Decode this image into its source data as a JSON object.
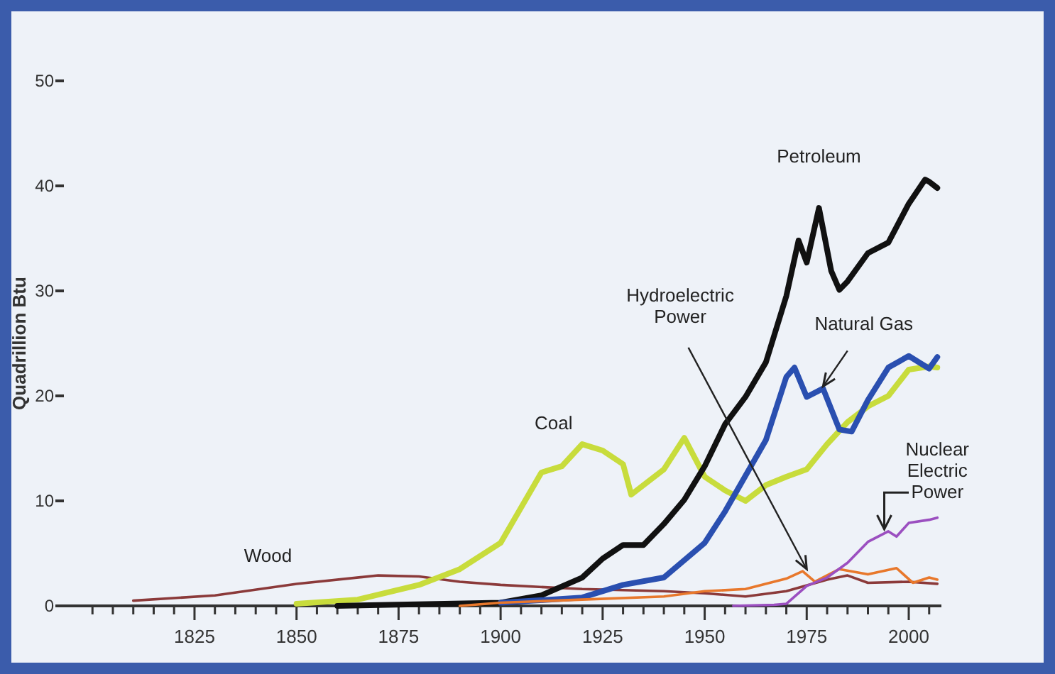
{
  "chart_data": {
    "type": "line",
    "ylabel": "Quadrillion Btu",
    "xlim": [
      1793,
      2008
    ],
    "ylim": [
      0,
      50
    ],
    "yticks": [
      0,
      10,
      20,
      30,
      40,
      50
    ],
    "xticks": [
      {
        "value": 1800,
        "label": null
      },
      {
        "value": 1805,
        "label": null
      },
      {
        "value": 1810,
        "label": null
      },
      {
        "value": 1815,
        "label": null
      },
      {
        "value": 1820,
        "label": null
      },
      1825,
      {
        "value": 1830,
        "label": null
      },
      {
        "value": 1835,
        "label": null
      },
      {
        "value": 1840,
        "label": null
      },
      {
        "value": 1845,
        "label": null
      },
      1850,
      {
        "value": 1855,
        "label": null
      },
      {
        "value": 1860,
        "label": null
      },
      {
        "value": 1865,
        "label": null
      },
      {
        "value": 1870,
        "label": null
      },
      1875,
      {
        "value": 1880,
        "label": null
      },
      {
        "value": 1885,
        "label": null
      },
      {
        "value": 1890,
        "label": null
      },
      {
        "value": 1895,
        "label": null
      },
      1900,
      {
        "value": 1905,
        "label": null
      },
      {
        "value": 1910,
        "label": null
      },
      {
        "value": 1915,
        "label": null
      },
      {
        "value": 1920,
        "label": null
      },
      1925,
      {
        "value": 1930,
        "label": null
      },
      {
        "value": 1935,
        "label": null
      },
      {
        "value": 1940,
        "label": null
      },
      {
        "value": 1945,
        "label": null
      },
      1950,
      {
        "value": 1955,
        "label": null
      },
      {
        "value": 1960,
        "label": null
      },
      {
        "value": 1965,
        "label": null
      },
      {
        "value": 1970,
        "label": null
      },
      1975,
      {
        "value": 1980,
        "label": null
      },
      {
        "value": 1985,
        "label": null
      },
      {
        "value": 1990,
        "label": null
      },
      {
        "value": 1995,
        "label": null
      },
      2000,
      {
        "value": 2005,
        "label": null
      }
    ],
    "grid": false,
    "marker": "none",
    "line_style": "solid",
    "series": [
      {
        "name": "Wood",
        "color": "#8b3a3a",
        "x": [
          1810,
          1830,
          1850,
          1870,
          1880,
          1890,
          1900,
          1920,
          1940,
          1950,
          1960,
          1970,
          1980,
          1985,
          1990,
          2000,
          2007
        ],
        "values": [
          0.5,
          1.0,
          2.1,
          2.9,
          2.8,
          2.3,
          2.0,
          1.6,
          1.4,
          1.2,
          0.9,
          1.4,
          2.5,
          2.9,
          2.2,
          2.3,
          2.1
        ]
      },
      {
        "name": "Coal",
        "color": "#c8dc3c",
        "x": [
          1850,
          1865,
          1880,
          1890,
          1900,
          1910,
          1915,
          1920,
          1925,
          1930,
          1932,
          1940,
          1945,
          1950,
          1955,
          1960,
          1965,
          1970,
          1975,
          1980,
          1985,
          1990,
          1995,
          2000,
          2005,
          2007
        ],
        "values": [
          0.2,
          0.6,
          2,
          3.5,
          6,
          12.7,
          13.3,
          15.4,
          14.8,
          13.5,
          10.6,
          13,
          16,
          12.3,
          11,
          10,
          11.5,
          12.3,
          13,
          15.4,
          17.5,
          19,
          20,
          22.5,
          22.8,
          22.7
        ]
      },
      {
        "name": "Petroleum",
        "color": "#111111",
        "x": [
          1860,
          1900,
          1910,
          1920,
          1925,
          1930,
          1935,
          1940,
          1945,
          1950,
          1955,
          1960,
          1965,
          1970,
          1973,
          1975,
          1978,
          1981,
          1983,
          1985,
          1990,
          1995,
          2000,
          2004,
          2005,
          2007
        ],
        "values": [
          0,
          0.3,
          1,
          2.7,
          4.5,
          5.8,
          5.8,
          7.8,
          10.1,
          13.3,
          17.3,
          19.9,
          23.2,
          29.5,
          34.8,
          32.7,
          37.9,
          31.9,
          30.1,
          30.9,
          33.6,
          34.6,
          38.3,
          40.6,
          40.4,
          39.8
        ]
      },
      {
        "name": "Natural Gas",
        "color": "#2a4fb0",
        "x": [
          1900,
          1920,
          1930,
          1940,
          1950,
          1955,
          1960,
          1965,
          1970,
          1972,
          1975,
          1979,
          1983,
          1986,
          1990,
          1995,
          2000,
          2005,
          2007
        ],
        "values": [
          0.3,
          0.8,
          2,
          2.7,
          6,
          9,
          12.4,
          15.8,
          21.8,
          22.7,
          19.9,
          20.7,
          16.8,
          16.6,
          19.6,
          22.7,
          23.8,
          22.6,
          23.7
        ]
      },
      {
        "name": "Hydroelectric Power",
        "color": "#e8782c",
        "x": [
          1890,
          1900,
          1920,
          1940,
          1950,
          1960,
          1970,
          1974,
          1977,
          1983,
          1990,
          1997,
          2001,
          2005,
          2007
        ],
        "values": [
          0,
          0.3,
          0.6,
          0.9,
          1.4,
          1.6,
          2.6,
          3.3,
          2.3,
          3.5,
          3.0,
          3.6,
          2.2,
          2.7,
          2.5
        ]
      },
      {
        "name": "Nuclear Electric Power",
        "color": "#9b4fc0",
        "x": [
          1957,
          1967,
          1970,
          1975,
          1980,
          1985,
          1990,
          1995,
          1997,
          2000,
          2005,
          2007
        ],
        "values": [
          0,
          0.1,
          0.2,
          1.9,
          2.7,
          4.1,
          6.1,
          7.1,
          6.6,
          7.9,
          8.2,
          8.4
        ]
      }
    ]
  }
}
